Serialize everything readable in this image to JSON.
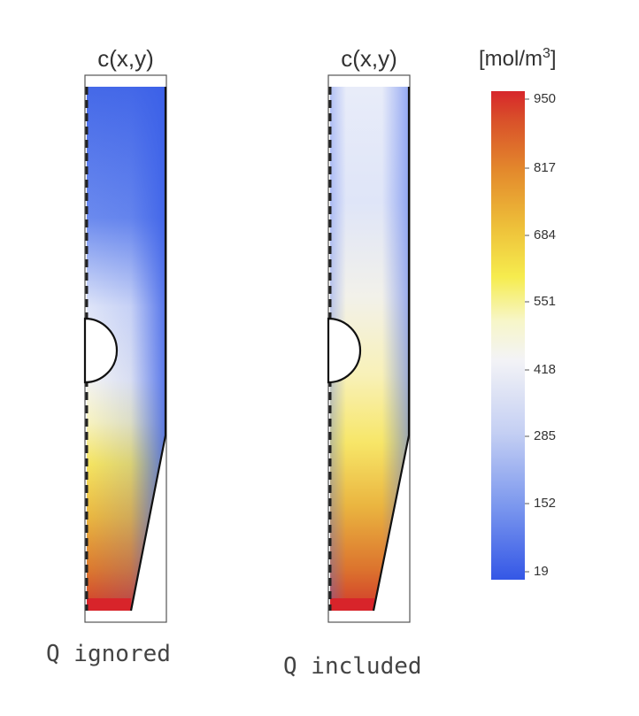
{
  "panels": [
    {
      "title": "c(x,y)",
      "caption": "Q ignored"
    },
    {
      "title": "c(x,y)",
      "caption": "Q included"
    }
  ],
  "colorbar": {
    "unit_text": "[mol/m",
    "unit_exp": "3",
    "unit_close": "]",
    "ticks": [
      "950",
      "817",
      "684",
      "551",
      "418",
      "285",
      "152",
      "19"
    ],
    "colors": {
      "low": "#3a5fe8",
      "mid": "#f4f4f4",
      "high_yellow": "#f6ef4a",
      "high": "#d8262b"
    }
  }
}
